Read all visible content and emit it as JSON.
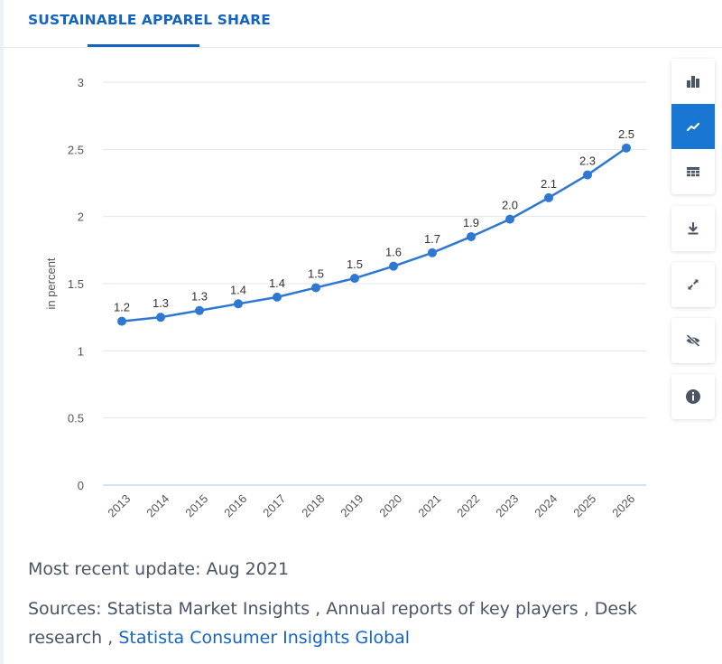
{
  "header": {
    "title": "SUSTAINABLE APPAREL SHARE"
  },
  "toolbar": {
    "items": [
      {
        "icon": "bar-chart-icon",
        "label": "Bar chart"
      },
      {
        "icon": "line-chart-icon",
        "label": "Line chart",
        "active": true
      },
      {
        "icon": "table-icon",
        "label": "Table"
      },
      {
        "icon": "download-icon",
        "label": "Download"
      },
      {
        "icon": "expand-icon",
        "label": "Fullscreen"
      },
      {
        "icon": "hide-icon",
        "label": "Hide"
      },
      {
        "icon": "info-icon",
        "label": "Info"
      }
    ]
  },
  "colors": {
    "accent": "#1565c0",
    "line": "#2e78d2",
    "grid": "#e3e6ea",
    "axis": "#b8d4ee",
    "text": "#4a5565"
  },
  "chart_data": {
    "type": "line",
    "title": "",
    "xlabel": "",
    "ylabel": "in percent",
    "categories": [
      "2013",
      "2014",
      "2015",
      "2016",
      "2017",
      "2018",
      "2019",
      "2020",
      "2021",
      "2022",
      "2023",
      "2024",
      "2025",
      "2026"
    ],
    "values": [
      1.22,
      1.25,
      1.3,
      1.35,
      1.4,
      1.47,
      1.54,
      1.63,
      1.73,
      1.85,
      1.98,
      2.14,
      2.31,
      2.51
    ],
    "labels": [
      "1.2",
      "1.3",
      "1.3",
      "1.4",
      "1.4",
      "1.5",
      "1.5",
      "1.6",
      "1.7",
      "1.9",
      "2.0",
      "2.1",
      "2.3",
      "2.5"
    ],
    "ylim": [
      0,
      3
    ],
    "yticks": [
      0,
      0.5,
      1,
      1.5,
      2,
      2.5,
      3
    ],
    "ytick_labels": [
      "0",
      "0.5",
      "1",
      "1.5",
      "2",
      "2.5",
      "3"
    ],
    "grid": true,
    "series_name": "Sustainable apparel share"
  },
  "footer": {
    "update": "Most recent update: Aug 2021",
    "sources_prefix": "Sources: Statista Market Insights , Annual reports of key players , Desk research , ",
    "sources_link": "Statista Consumer Insights Global"
  }
}
